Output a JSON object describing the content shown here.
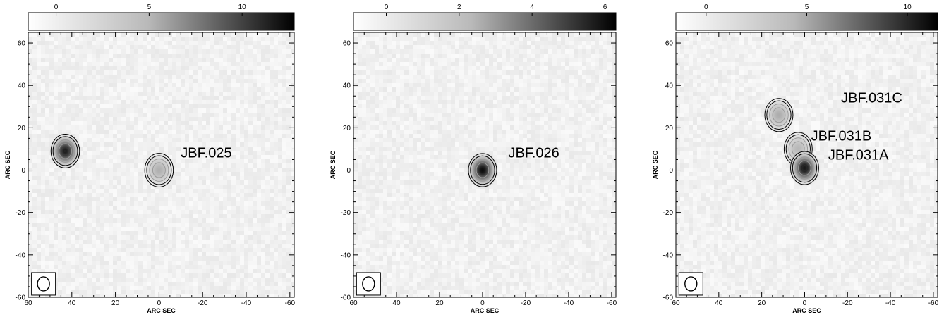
{
  "chart_data": [
    {
      "type": "heatmap",
      "title": "",
      "xlabel": "ARC SEC",
      "ylabel": "ARC SEC",
      "xlim": [
        60,
        -62
      ],
      "ylim": [
        -60,
        65
      ],
      "x_ticks": [
        60,
        40,
        20,
        0,
        -20,
        -40,
        -60
      ],
      "y_ticks": [
        60,
        40,
        20,
        0,
        -20,
        -40,
        -60
      ],
      "colorbar": {
        "range": [
          -1.5,
          12.8
        ],
        "ticks": [
          0,
          5,
          10
        ],
        "colormap": "grayscale-white-to-black"
      },
      "annotations": [
        {
          "text": "JBF.025",
          "x": -10,
          "y": 6
        }
      ],
      "sources": [
        {
          "x": 43,
          "y": 9,
          "peak": 12.0
        },
        {
          "x": 0,
          "y": 0,
          "peak": 5.5
        }
      ],
      "beam": {
        "x": 53,
        "y": -54
      }
    },
    {
      "type": "heatmap",
      "title": "",
      "xlabel": "ARC SEC",
      "ylabel": "ARC SEC",
      "xlim": [
        60,
        -62
      ],
      "ylim": [
        -60,
        65
      ],
      "x_ticks": [
        60,
        40,
        20,
        0,
        -20,
        -40,
        -60
      ],
      "y_ticks": [
        60,
        40,
        20,
        0,
        -20,
        -40,
        -60
      ],
      "colorbar": {
        "range": [
          -0.9,
          6.3
        ],
        "ticks": [
          0,
          2,
          4,
          6
        ],
        "colormap": "grayscale-white-to-black"
      },
      "annotations": [
        {
          "text": "JBF.026",
          "x": -12,
          "y": 6
        }
      ],
      "sources": [
        {
          "x": 0,
          "y": 0,
          "peak": 6.2
        }
      ],
      "beam": {
        "x": 53,
        "y": -54
      }
    },
    {
      "type": "heatmap",
      "title": "",
      "xlabel": "ARC SEC",
      "ylabel": "ARC SEC",
      "xlim": [
        60,
        -62
      ],
      "ylim": [
        -60,
        65
      ],
      "x_ticks": [
        60,
        40,
        20,
        0,
        -20,
        -40,
        -60
      ],
      "y_ticks": [
        60,
        40,
        20,
        0,
        -20,
        -40,
        -60
      ],
      "colorbar": {
        "range": [
          -1.5,
          11.5
        ],
        "ticks": [
          0,
          5,
          10
        ],
        "colormap": "grayscale-white-to-black"
      },
      "annotations": [
        {
          "text": "JBF.031C",
          "x": -17,
          "y": 32
        },
        {
          "text": "JBF.031B",
          "x": -3,
          "y": 14
        },
        {
          "text": "JBF.031A",
          "x": -11,
          "y": 5
        }
      ],
      "sources": [
        {
          "x": 12,
          "y": 26,
          "peak": 5.0
        },
        {
          "x": 3,
          "y": 10,
          "peak": 4.5
        },
        {
          "x": 0,
          "y": 1,
          "peak": 11.2
        }
      ],
      "beam": {
        "x": 53,
        "y": -54
      }
    }
  ]
}
